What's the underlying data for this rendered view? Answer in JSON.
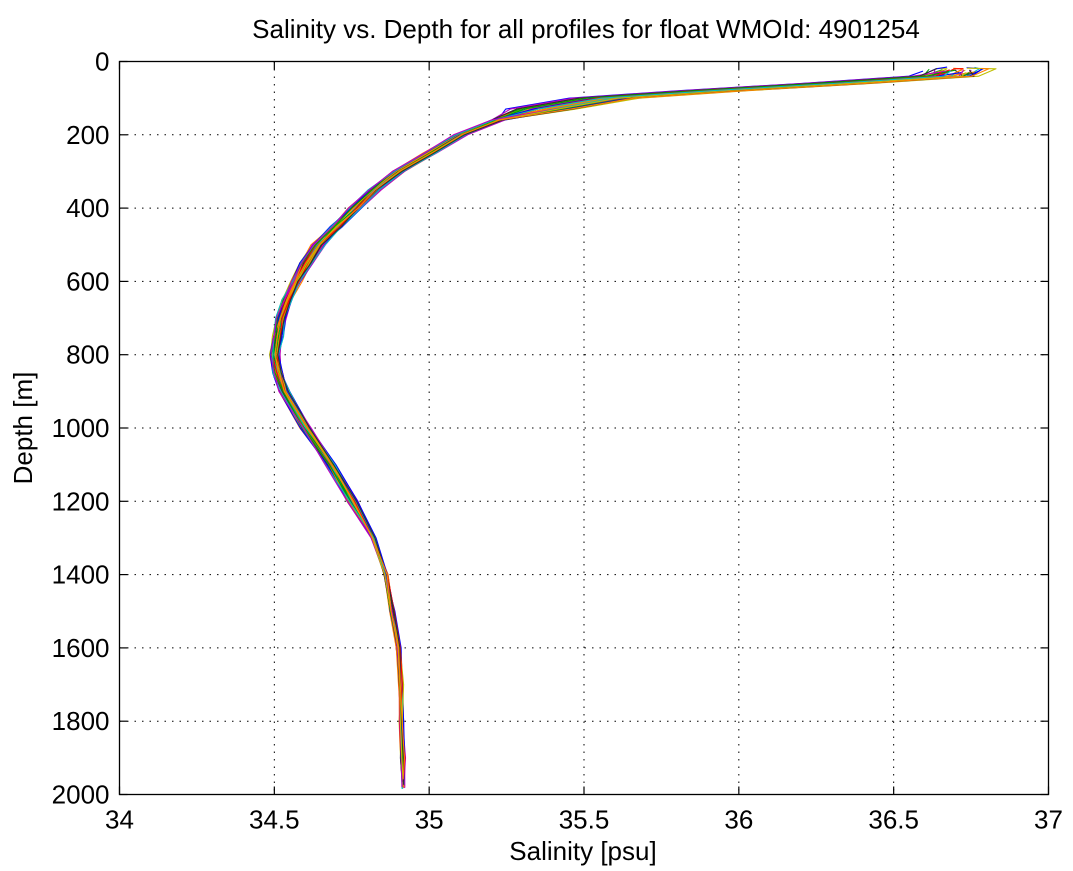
{
  "chart_data": {
    "type": "line",
    "title": "Salinity vs. Depth for all profiles for float WMOId: 4901254",
    "xlabel": "Salinity [psu]",
    "ylabel": "Depth [m]",
    "xlim": [
      34,
      37
    ],
    "ylim": [
      0,
      2000
    ],
    "y_reversed": true,
    "grid": true,
    "grid_style": "dotted",
    "xticks": [
      34,
      34.5,
      35,
      35.5,
      36,
      36.5,
      37
    ],
    "xtick_labels": [
      "34",
      "34.5",
      "35",
      "35.5",
      "36",
      "36.5",
      "37"
    ],
    "yticks": [
      0,
      200,
      400,
      600,
      800,
      1000,
      1200,
      1400,
      1600,
      1800,
      2000
    ],
    "ytick_labels": [
      "0",
      "200",
      "400",
      "600",
      "800",
      "1000",
      "1200",
      "1400",
      "1600",
      "1800",
      "2000"
    ],
    "colors": [
      "#0000ff",
      "#00a000",
      "#ff0000",
      "#00bfbf",
      "#bf00bf",
      "#bfbf00",
      "#303030",
      "#ff8000"
    ],
    "mean_profile": {
      "depth": [
        20,
        40,
        60,
        80,
        100,
        130,
        160,
        200,
        250,
        300,
        350,
        400,
        450,
        500,
        550,
        600,
        650,
        700,
        750,
        800,
        850,
        900,
        1000,
        1100,
        1200,
        1300,
        1400,
        1500,
        1600,
        1700,
        1800,
        1900,
        1980
      ],
      "salinity": [
        36.7,
        36.65,
        36.3,
        35.9,
        35.55,
        35.35,
        35.22,
        35.1,
        35.0,
        34.9,
        34.82,
        34.76,
        34.7,
        34.64,
        34.6,
        34.57,
        34.54,
        34.52,
        34.51,
        34.5,
        34.51,
        34.53,
        34.6,
        34.68,
        34.75,
        34.82,
        34.86,
        34.88,
        34.9,
        34.91,
        34.91,
        34.915,
        34.915
      ]
    },
    "profile_count": 40
  }
}
